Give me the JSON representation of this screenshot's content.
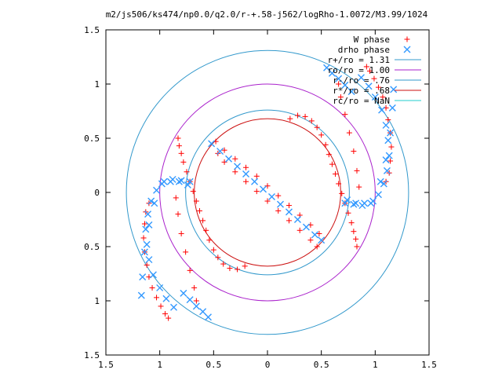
{
  "chart_data": {
    "type": "scatter",
    "title": "m2/js506/ks474/np0.0/q2.0/r-+.58-j562/logRho-1.0072/M3.99/1024",
    "xlabel": "",
    "ylabel": "",
    "xlim": [
      -1.5,
      1.5
    ],
    "ylim": [
      -1.5,
      1.5
    ],
    "grid": false,
    "legend_position": "top-right",
    "x_ticks": [
      "1.5",
      "1",
      "0.5",
      "0",
      "0.5",
      "1",
      "1.5"
    ],
    "y_ticks": [
      "1.5",
      "1",
      "0.5",
      "0",
      "0.5",
      "1",
      "1.5"
    ],
    "series": [
      {
        "name": "W phase",
        "kind": "points",
        "marker": "+",
        "color": "#ff0000",
        "x": [
          0.21,
          0.28,
          0.35,
          0.41,
          0.46,
          0.5,
          0.54,
          0.57,
          0.6,
          0.63,
          0.66,
          0.69,
          0.72,
          0.75,
          0.78,
          0.8,
          0.82,
          0.83,
          -0.21,
          -0.28,
          -0.35,
          -0.41,
          -0.46,
          -0.5,
          -0.54,
          -0.57,
          -0.6,
          -0.63,
          -0.66,
          -0.69,
          -0.72,
          -0.75,
          -0.78,
          -0.8,
          -0.82,
          -0.83,
          0.92,
          0.95,
          0.99,
          1.03,
          1.07,
          1.1,
          1.12,
          1.14,
          1.15,
          1.14,
          1.13,
          1.1,
          -0.92,
          -0.95,
          -0.99,
          -1.03,
          -1.07,
          -1.1,
          -1.12,
          -1.14,
          -1.15,
          -1.14,
          -1.13,
          -1.1,
          -0.48,
          -0.4,
          -0.3,
          -0.2,
          -0.1,
          0.0,
          0.1,
          0.2,
          0.3,
          0.4,
          0.48,
          0.46,
          0.4,
          0.3,
          0.2,
          0.1,
          0.0,
          -0.1,
          -0.2,
          -0.3,
          -0.4,
          -0.46,
          -0.85,
          -0.83,
          -0.8,
          -0.76,
          -0.72,
          -0.68,
          -0.66,
          0.85,
          0.83,
          0.8,
          0.76,
          0.72,
          0.68,
          0.66
        ],
        "y": [
          0.68,
          0.71,
          0.7,
          0.66,
          0.6,
          0.53,
          0.44,
          0.35,
          0.26,
          0.17,
          0.08,
          -0.01,
          -0.1,
          -0.19,
          -0.28,
          -0.36,
          -0.43,
          -0.5,
          -0.68,
          -0.71,
          -0.7,
          -0.66,
          -0.6,
          -0.53,
          -0.44,
          -0.35,
          -0.26,
          -0.17,
          -0.08,
          0.01,
          0.1,
          0.19,
          0.28,
          0.36,
          0.43,
          0.5,
          1.16,
          1.12,
          1.05,
          0.97,
          0.88,
          0.78,
          0.67,
          0.55,
          0.42,
          0.29,
          0.18,
          0.1,
          -1.16,
          -1.12,
          -1.05,
          -0.97,
          -0.88,
          -0.78,
          -0.67,
          -0.55,
          -0.42,
          -0.29,
          -0.18,
          -0.1,
          0.47,
          0.39,
          0.31,
          0.23,
          0.15,
          0.06,
          -0.03,
          -0.12,
          -0.21,
          -0.3,
          -0.38,
          -0.5,
          -0.44,
          -0.35,
          -0.26,
          -0.17,
          -0.08,
          0.01,
          0.1,
          0.19,
          0.28,
          0.36,
          -0.05,
          -0.2,
          -0.38,
          -0.55,
          -0.72,
          -0.88,
          -1.0,
          0.05,
          0.2,
          0.38,
          0.55,
          0.72,
          0.88,
          1.0
        ]
      },
      {
        "name": "drho phase",
        "kind": "points",
        "marker": "x",
        "color": "#3399ff",
        "x": [
          -0.52,
          -0.44,
          -0.36,
          -0.28,
          -0.2,
          -0.12,
          -0.04,
          0.04,
          0.12,
          0.2,
          0.28,
          0.36,
          0.44,
          0.5,
          0.72,
          0.8,
          0.88,
          0.96,
          1.03,
          1.08,
          1.11,
          1.13,
          1.12,
          1.1,
          1.06,
          1.0,
          0.94,
          0.87,
          -0.72,
          -0.8,
          -0.88,
          -0.96,
          -1.03,
          -1.08,
          -1.11,
          -1.13,
          -1.12,
          -1.1,
          -1.06,
          -1.0,
          -0.94,
          -0.87,
          -0.74,
          -0.82,
          -0.9,
          -0.98,
          -1.05,
          -1.1,
          -1.14,
          -1.16,
          -1.17,
          0.74,
          0.82,
          0.9,
          0.98,
          1.05,
          1.1,
          1.14,
          1.16,
          1.17,
          -0.55,
          -0.6,
          -0.66,
          -0.72,
          -0.78,
          0.55,
          0.6,
          0.66,
          0.72,
          0.78
        ],
        "y": [
          0.45,
          0.38,
          0.31,
          0.24,
          0.17,
          0.1,
          0.03,
          -0.04,
          -0.11,
          -0.18,
          -0.25,
          -0.32,
          -0.39,
          -0.44,
          -0.1,
          -0.11,
          -0.12,
          -0.1,
          -0.02,
          0.08,
          0.2,
          0.34,
          0.48,
          0.62,
          0.76,
          0.88,
          0.98,
          1.06,
          0.1,
          0.11,
          0.12,
          0.1,
          0.02,
          -0.08,
          -0.2,
          -0.34,
          -0.48,
          -0.62,
          -0.76,
          -0.88,
          -0.98,
          -1.06,
          0.07,
          0.1,
          0.1,
          0.08,
          -0.1,
          -0.3,
          -0.55,
          -0.78,
          -0.95,
          -0.07,
          -0.1,
          -0.1,
          -0.08,
          0.1,
          0.3,
          0.55,
          0.78,
          0.95,
          -1.15,
          -1.1,
          -1.05,
          -0.99,
          -0.93,
          1.15,
          1.1,
          1.05,
          0.99,
          0.93
        ]
      },
      {
        "name": "r+/ro = 1.31",
        "kind": "circle",
        "radius": 1.31,
        "color": "#3399cc"
      },
      {
        "name": "ro/ro = 1.00",
        "kind": "circle",
        "radius": 1.0,
        "color": "#aa22cc"
      },
      {
        "name": "r-/ro = .76",
        "kind": "circle",
        "radius": 0.76,
        "color": "#3399cc"
      },
      {
        "name": "r*/ro = .68",
        "kind": "circle",
        "radius": 0.68,
        "color": "#cc1111"
      },
      {
        "name": "rc/ro = NaN",
        "kind": "circle",
        "radius": null,
        "color": "#22cccc"
      }
    ]
  }
}
